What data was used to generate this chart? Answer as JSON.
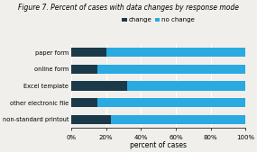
{
  "categories": [
    "non-standard printout",
    "other electronic file",
    "Excel template",
    "online form",
    "paper form"
  ],
  "change_values": [
    23,
    15,
    32,
    15,
    20
  ],
  "no_change_values": [
    77,
    85,
    68,
    85,
    80
  ],
  "color_change": "#1a3a4a",
  "color_no_change": "#29aae1",
  "title_bold": "Figure 7.",
  "title_normal": " Percent of cases with data changes by response mode",
  "xlabel": "percent of cases",
  "legend_labels": [
    "change",
    "no change"
  ],
  "xtick_labels": [
    "0%",
    "20%",
    "40%",
    "60%",
    "80%",
    "100%"
  ],
  "xtick_values": [
    0,
    20,
    40,
    60,
    80,
    100
  ],
  "background_color": "#f0efeb"
}
